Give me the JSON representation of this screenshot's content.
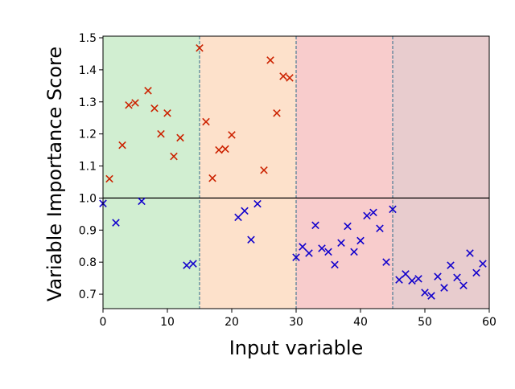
{
  "chart_data": {
    "type": "scatter",
    "title": "",
    "xlabel": "Input variable",
    "ylabel": "Variable Importance Score",
    "xlim": [
      0,
      60
    ],
    "ylim": [
      0.655,
      1.505
    ],
    "xticks": [
      0,
      10,
      20,
      30,
      40,
      50,
      60
    ],
    "yticks": [
      0.7,
      0.8,
      0.9,
      1.0,
      1.1,
      1.2,
      1.3,
      1.4,
      1.5
    ],
    "xtick_labels": [
      "0",
      "10",
      "20",
      "30",
      "40",
      "50",
      "60"
    ],
    "ytick_labels": [
      "0.7",
      "0.8",
      "0.9",
      "1.0",
      "1.1",
      "1.2",
      "1.3",
      "1.4",
      "1.5"
    ],
    "grid": false,
    "reference_line": {
      "y": 1.0,
      "color": "#000000"
    },
    "region_dividers": [
      15,
      30,
      45
    ],
    "regions": [
      {
        "x0": 0,
        "x1": 15,
        "color": "#d1eed1"
      },
      {
        "x0": 15,
        "x1": 30,
        "color": "#fde1cb"
      },
      {
        "x0": 30,
        "x1": 45,
        "color": "#f8cccc"
      },
      {
        "x0": 45,
        "x1": 60,
        "color": "#e8ccce"
      }
    ],
    "marker": "x",
    "series": [
      {
        "color": "#cc2200",
        "points": [
          [
            1,
            1.06
          ],
          [
            3,
            1.165
          ],
          [
            4,
            1.29
          ],
          [
            5,
            1.297
          ],
          [
            7,
            1.335
          ],
          [
            8,
            1.28
          ],
          [
            9,
            1.2
          ],
          [
            10,
            1.265
          ],
          [
            11,
            1.13
          ],
          [
            12,
            1.188
          ],
          [
            15,
            1.468
          ],
          [
            16,
            1.238
          ],
          [
            17,
            1.062
          ],
          [
            18,
            1.15
          ],
          [
            19,
            1.153
          ],
          [
            20,
            1.197
          ],
          [
            25,
            1.087
          ],
          [
            26,
            1.43
          ],
          [
            27,
            1.265
          ],
          [
            28,
            1.38
          ],
          [
            29,
            1.375
          ]
        ]
      },
      {
        "color": "#1100cc",
        "points": [
          [
            0,
            0.983
          ],
          [
            2,
            0.923
          ],
          [
            6,
            0.99
          ],
          [
            13,
            0.79
          ],
          [
            14,
            0.795
          ],
          [
            21,
            0.94
          ],
          [
            22,
            0.96
          ],
          [
            23,
            0.87
          ],
          [
            24,
            0.982
          ],
          [
            30,
            0.815
          ],
          [
            31,
            0.848
          ],
          [
            32,
            0.828
          ],
          [
            33,
            0.915
          ],
          [
            34,
            0.843
          ],
          [
            35,
            0.832
          ],
          [
            36,
            0.792
          ],
          [
            37,
            0.86
          ],
          [
            38,
            0.912
          ],
          [
            39,
            0.832
          ],
          [
            40,
            0.867
          ],
          [
            41,
            0.945
          ],
          [
            42,
            0.955
          ],
          [
            43,
            0.905
          ],
          [
            44,
            0.8
          ],
          [
            45,
            0.965
          ],
          [
            46,
            0.745
          ],
          [
            47,
            0.763
          ],
          [
            48,
            0.742
          ],
          [
            49,
            0.748
          ],
          [
            50,
            0.705
          ],
          [
            51,
            0.695
          ],
          [
            52,
            0.755
          ],
          [
            53,
            0.72
          ],
          [
            54,
            0.79
          ],
          [
            55,
            0.752
          ],
          [
            56,
            0.727
          ],
          [
            57,
            0.828
          ],
          [
            58,
            0.767
          ],
          [
            59,
            0.795
          ]
        ]
      }
    ]
  }
}
